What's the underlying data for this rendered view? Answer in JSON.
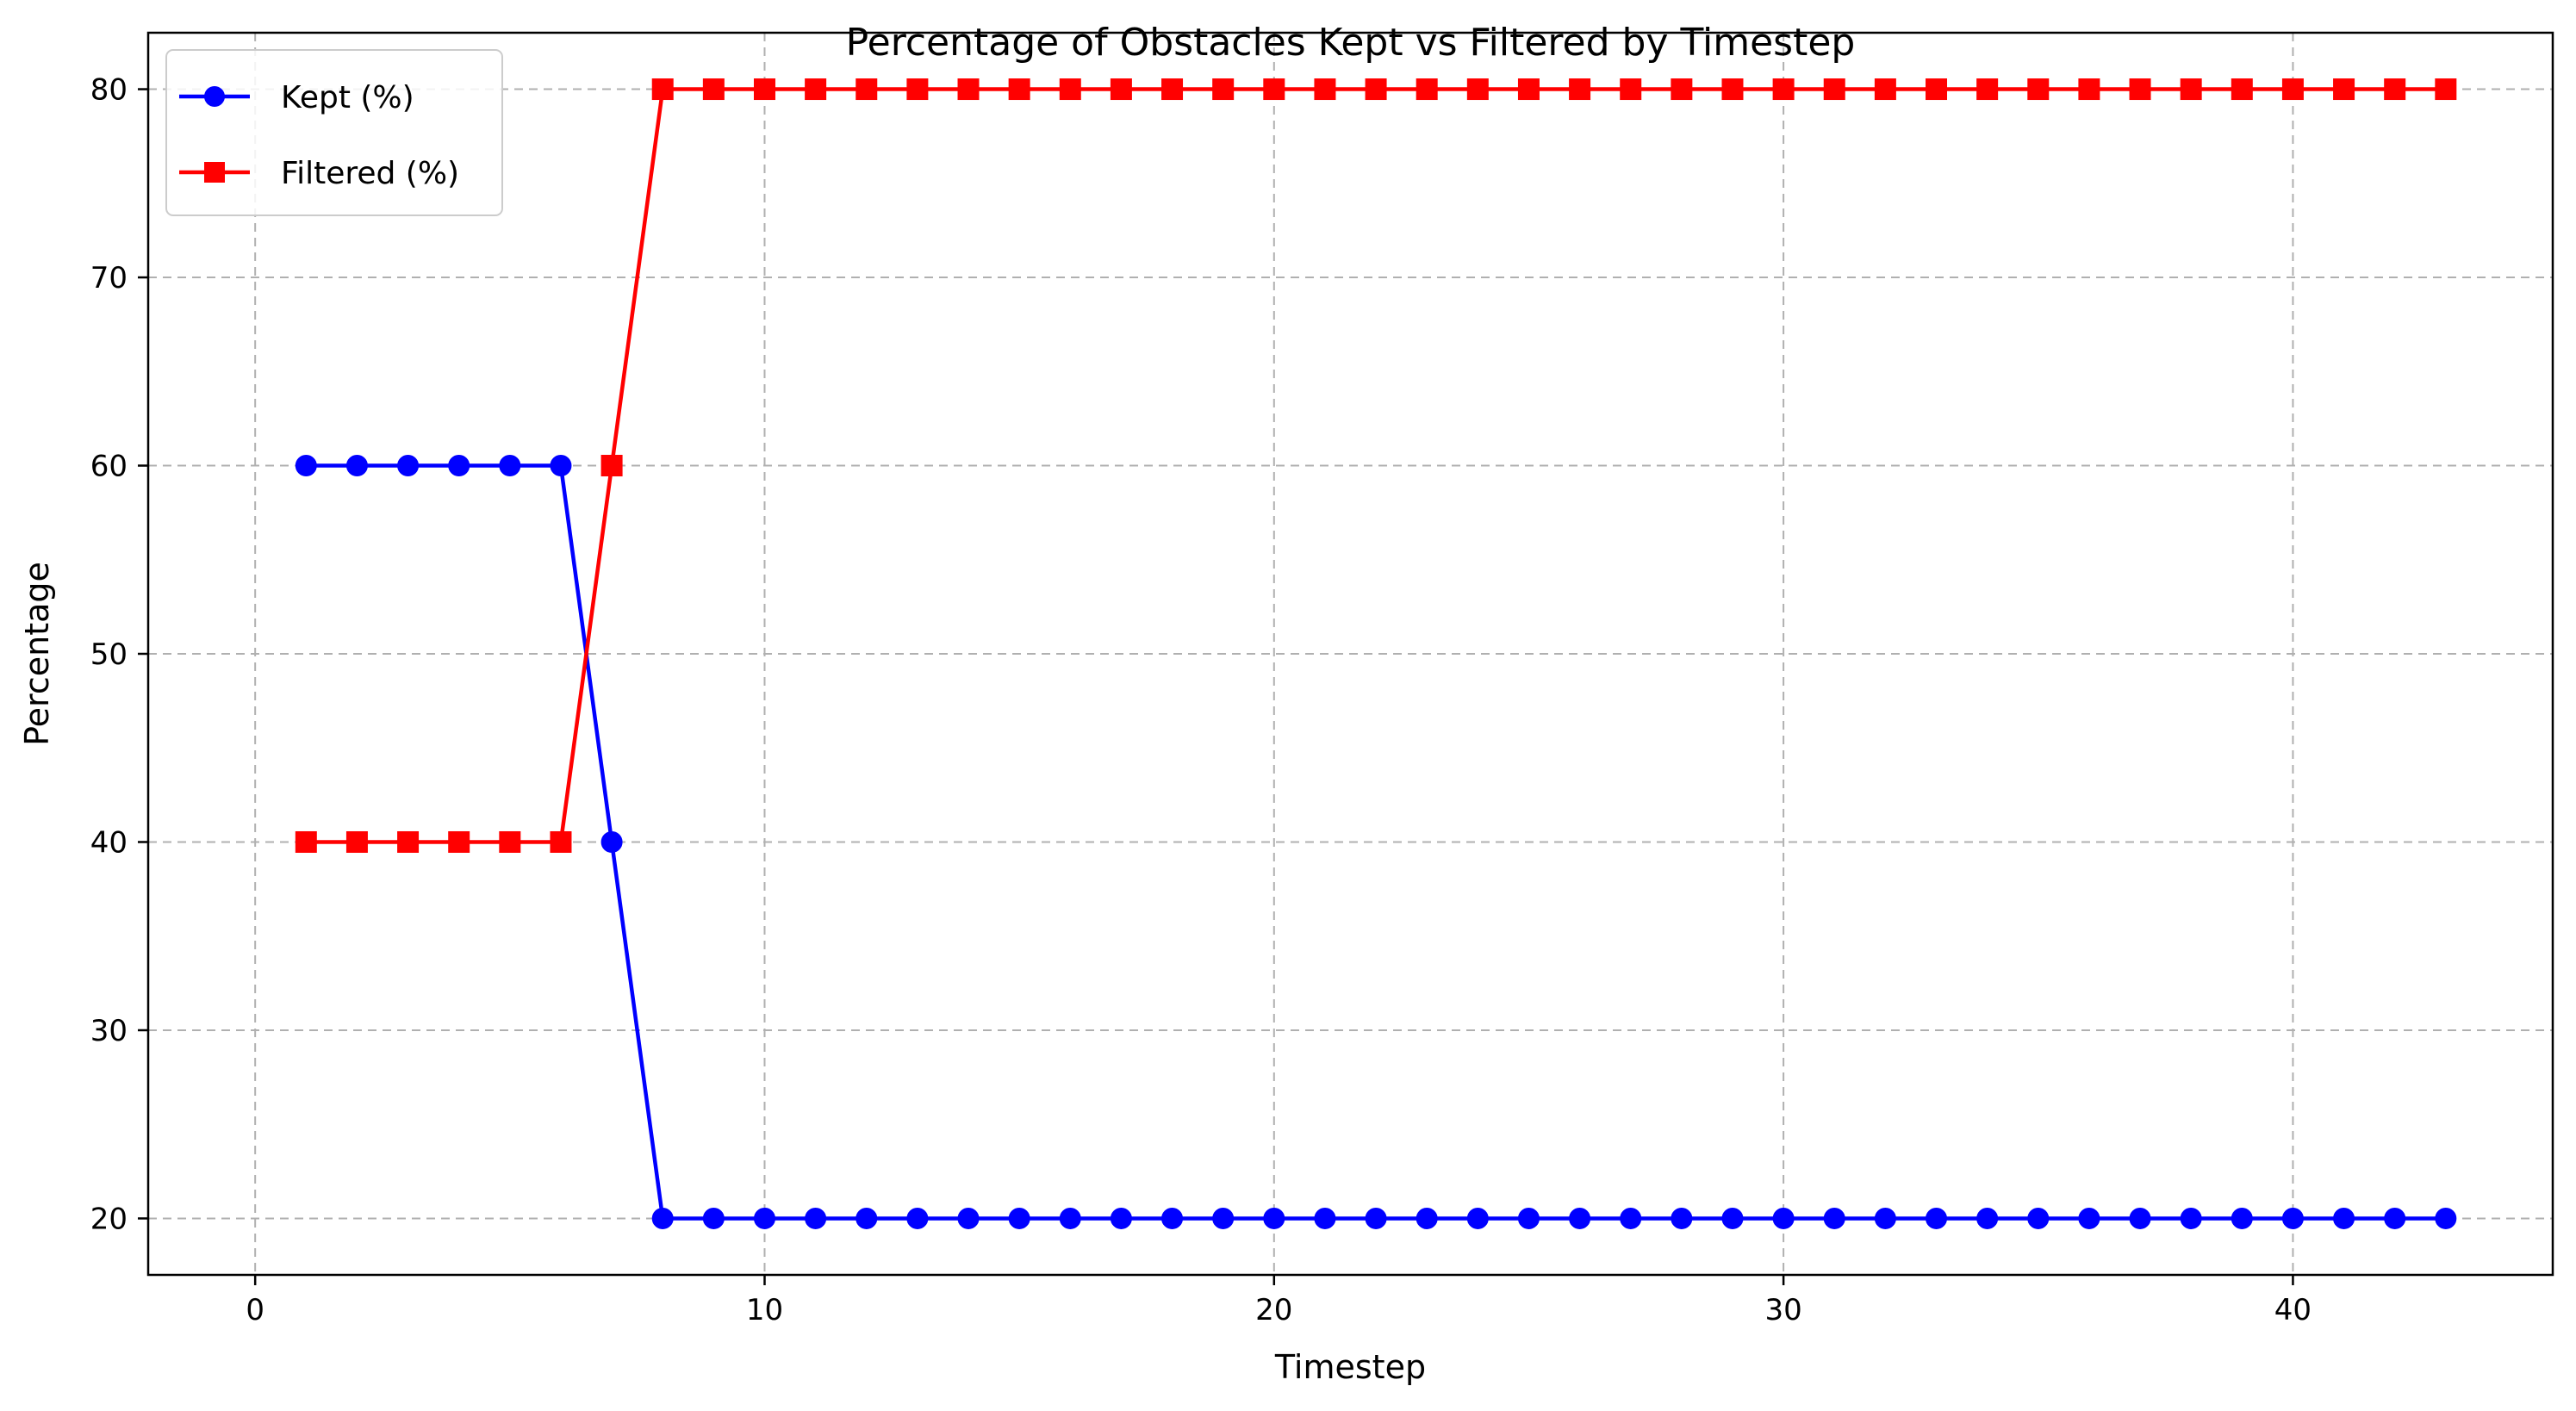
{
  "chart_data": {
    "type": "line",
    "title": "Percentage of Obstacles Kept vs Filtered by Timestep",
    "xlabel": "Timestep",
    "ylabel": "Percentage",
    "xlim": [
      -2.1,
      45.1
    ],
    "ylim": [
      17,
      83
    ],
    "x_ticks": [
      0,
      10,
      20,
      30,
      40
    ],
    "y_ticks": [
      20,
      30,
      40,
      50,
      60,
      70,
      80
    ],
    "grid": true,
    "legend_position": "top-left",
    "x": [
      1,
      2,
      3,
      4,
      5,
      6,
      7,
      8,
      9,
      10,
      11,
      12,
      13,
      14,
      15,
      16,
      17,
      18,
      19,
      20,
      21,
      22,
      23,
      24,
      25,
      26,
      27,
      28,
      29,
      30,
      31,
      32,
      33,
      34,
      35,
      36,
      37,
      38,
      39,
      40,
      41,
      42,
      43
    ],
    "series": [
      {
        "name": "Kept (%)",
        "color": "#0000ff",
        "marker": "circle",
        "values": [
          60,
          60,
          60,
          60,
          60,
          60,
          40,
          20,
          20,
          20,
          20,
          20,
          20,
          20,
          20,
          20,
          20,
          20,
          20,
          20,
          20,
          20,
          20,
          20,
          20,
          20,
          20,
          20,
          20,
          20,
          20,
          20,
          20,
          20,
          20,
          20,
          20,
          20,
          20,
          20,
          20,
          20,
          20
        ]
      },
      {
        "name": "Filtered (%)",
        "color": "#ff0000",
        "marker": "square",
        "values": [
          40,
          40,
          40,
          40,
          40,
          40,
          60,
          80,
          80,
          80,
          80,
          80,
          80,
          80,
          80,
          80,
          80,
          80,
          80,
          80,
          80,
          80,
          80,
          80,
          80,
          80,
          80,
          80,
          80,
          80,
          80,
          80,
          80,
          80,
          80,
          80,
          80,
          80,
          80,
          80,
          80,
          80,
          80
        ]
      }
    ]
  }
}
